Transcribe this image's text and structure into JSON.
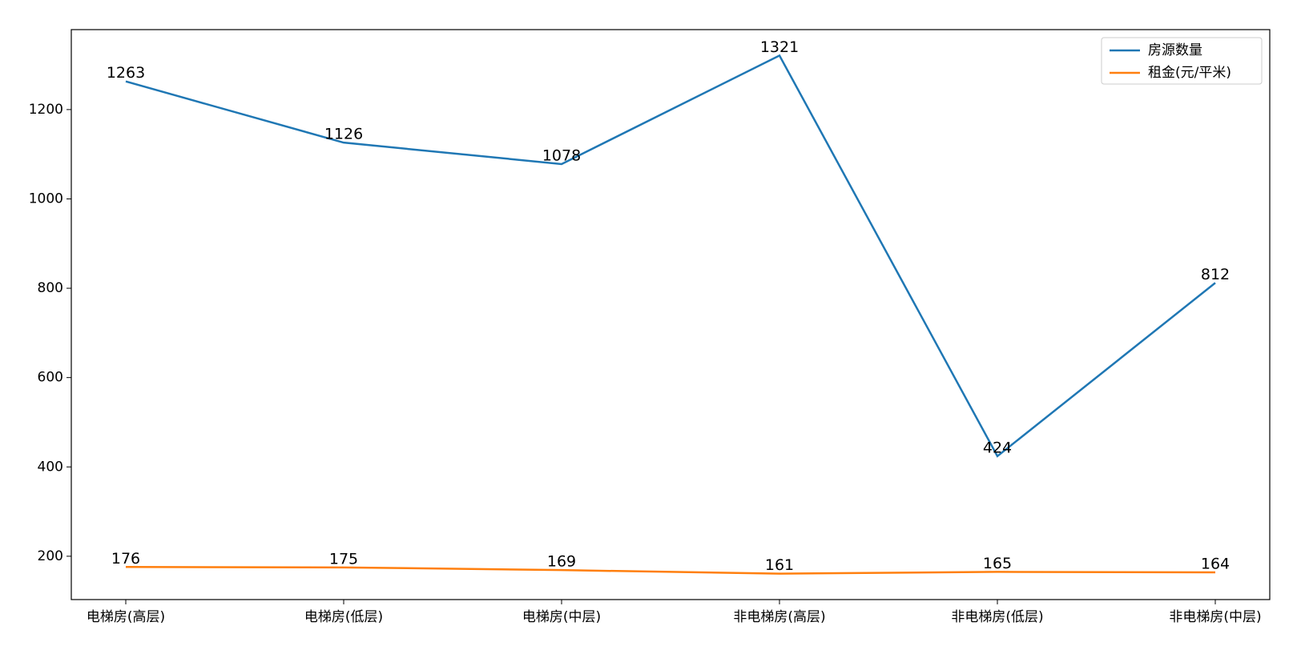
{
  "chart_data": {
    "type": "line",
    "categories": [
      "电梯房(高层)",
      "电梯房(低层)",
      "电梯房(中层)",
      "非电梯房(高层)",
      "非电梯房(低层)",
      "非电梯房(中层)"
    ],
    "series": [
      {
        "name": "房源数量",
        "color": "#1f77b4",
        "values": [
          1263,
          1126,
          1078,
          1321,
          424,
          812
        ]
      },
      {
        "name": "租金(元/平米)",
        "color": "#ff7f0e",
        "values": [
          176,
          175,
          169,
          161,
          165,
          164
        ]
      }
    ],
    "ylim": [
      103,
      1379
    ],
    "yticks": [
      200,
      400,
      600,
      800,
      1000,
      1200
    ],
    "legend": "upper right",
    "data_labels": true
  }
}
